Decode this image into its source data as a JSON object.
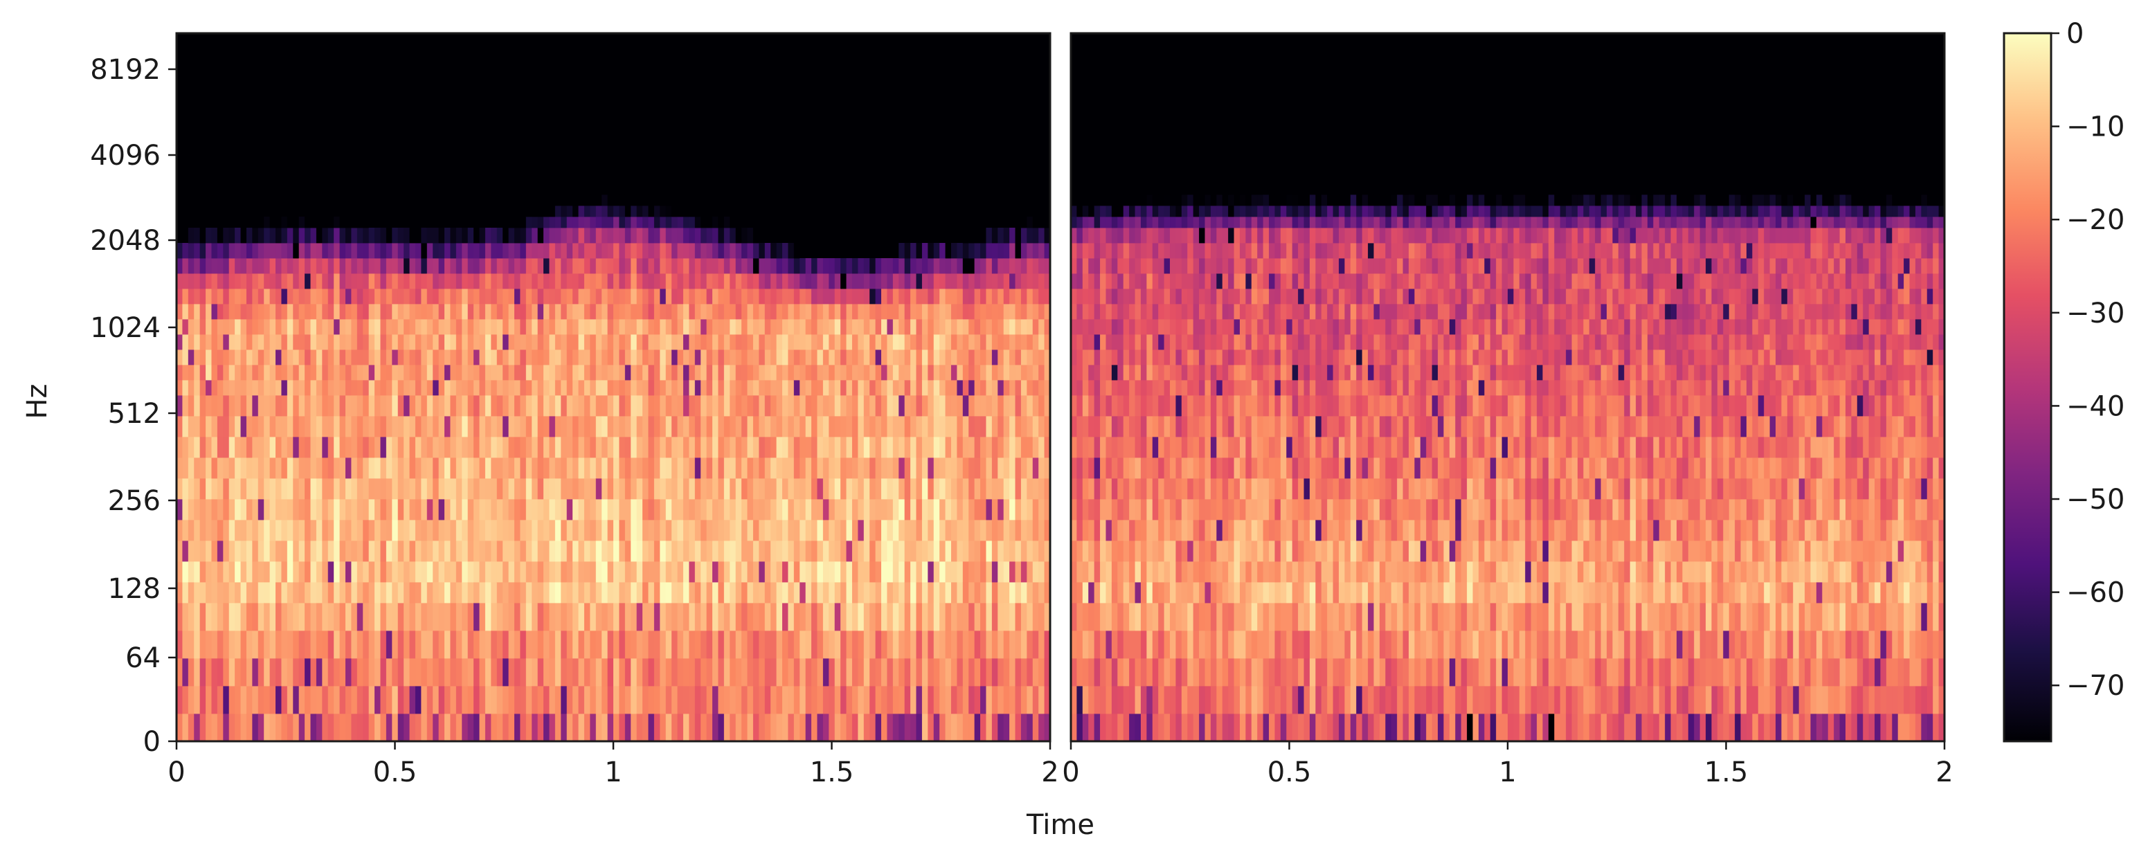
{
  "chart_data": [
    {
      "type": "heatmap",
      "panel": "left",
      "x": [
        0,
        0.5,
        1,
        1.5,
        2
      ],
      "x_tick_labels": [
        "0",
        "0.5",
        "1",
        "1.5",
        "2"
      ],
      "xlim": [
        0,
        2
      ],
      "y_tick_labels": [
        "0",
        "64",
        "128",
        "256",
        "512",
        "1024",
        "2048",
        "4096",
        "8192"
      ],
      "y_scale": "log2 (frequency)",
      "ylabel": "Hz",
      "xlabel": "",
      "energy_cutoff_hz": [
        2048,
        2300,
        2500,
        2300,
        2150,
        2350,
        3200,
        3100,
        2500,
        1900,
        1700,
        1900,
        2150,
        2500
      ],
      "level_profile_db": [
        {
          "hz": 32,
          "db": -20
        },
        {
          "hz": 64,
          "db": -20
        },
        {
          "hz": 128,
          "db": -9
        },
        {
          "hz": 256,
          "db": -11
        },
        {
          "hz": 512,
          "db": -15
        },
        {
          "hz": 1024,
          "db": -14
        },
        {
          "hz": 2048,
          "db": -38
        },
        {
          "hz": 4096,
          "db": -76
        },
        {
          "hz": 8192,
          "db": -76
        }
      ]
    },
    {
      "type": "heatmap",
      "panel": "right",
      "x": [
        0,
        0.5,
        1,
        1.5,
        2
      ],
      "x_tick_labels": [
        "0",
        "0.5",
        "1",
        "1.5",
        "2"
      ],
      "xlim": [
        0,
        2
      ],
      "xlabel": "Time",
      "y_scale": "log2 (frequency)",
      "energy_cutoff_hz": [
        3000,
        3100,
        3200,
        3200,
        3300,
        3300,
        3300,
        3300,
        3300,
        3400,
        3300,
        3300,
        3300,
        3200
      ],
      "level_profile_db": [
        {
          "hz": 32,
          "db": -26
        },
        {
          "hz": 64,
          "db": -20
        },
        {
          "hz": 128,
          "db": -12
        },
        {
          "hz": 256,
          "db": -20
        },
        {
          "hz": 512,
          "db": -24
        },
        {
          "hz": 1024,
          "db": -29
        },
        {
          "hz": 2048,
          "db": -32
        },
        {
          "hz": 4096,
          "db": -76
        },
        {
          "hz": 8192,
          "db": -76
        }
      ]
    }
  ],
  "colorbar": {
    "colormap": "magma",
    "min_db": -76,
    "max_db": 0,
    "ticks": [
      0,
      -10,
      -20,
      -30,
      -40,
      -50,
      -60,
      -70
    ],
    "tick_labels": [
      "0",
      "−10",
      "−20",
      "−30",
      "−40",
      "−50",
      "−60",
      "−70"
    ]
  },
  "colors": {
    "background": "#ffffff",
    "ink": "#1a1a1a"
  }
}
